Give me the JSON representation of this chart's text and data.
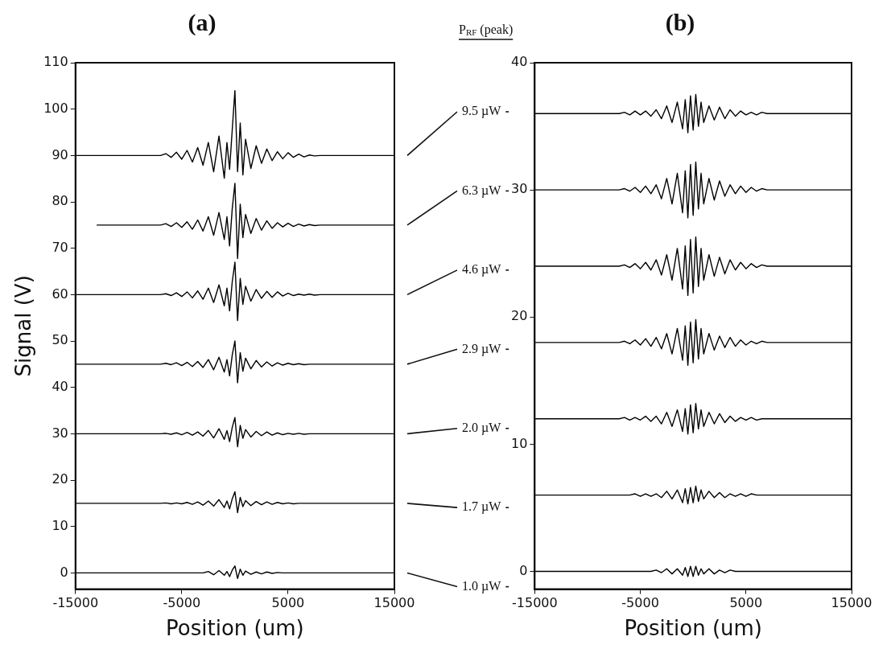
{
  "chart_data": [
    {
      "type": "line",
      "title": "(a)",
      "xlabel": "Position (um)",
      "ylabel": "Signal (V)",
      "annotations": [
        "P$_{RF}$ (peak)"
      ],
      "xlim": [
        -15000,
        15000
      ],
      "xticks": [
        -15000,
        -5000,
        5000,
        15000
      ],
      "ylim": [
        -3.5,
        110
      ],
      "yticks": [
        0,
        10,
        20,
        30,
        40,
        50,
        60,
        70,
        80,
        90,
        100,
        110
      ],
      "x": [
        -15000,
        -13000,
        -7000,
        -6500,
        -6000,
        -5500,
        -5000,
        -4500,
        -4000,
        -3500,
        -3000,
        -2500,
        -2000,
        -1500,
        -1000,
        -750,
        -500,
        -250,
        0,
        250,
        500,
        750,
        1000,
        1500,
        2000,
        2500,
        3000,
        3500,
        4000,
        4500,
        5000,
        5500,
        6000,
        6500,
        7000,
        7500,
        8000,
        15000
      ],
      "series": [
        {
          "name": "9.5 µW",
          "color": "#000000",
          "values": [
            90,
            90,
            90,
            90.4,
            89.6,
            90.7,
            89.2,
            91.1,
            88.6,
            91.7,
            87.9,
            92.8,
            86.5,
            94.2,
            85.1,
            92.8,
            87,
            95.6,
            104,
            86.5,
            97,
            85.8,
            93.5,
            87.2,
            92.1,
            88.3,
            91.4,
            88.9,
            90.8,
            89.3,
            90.6,
            89.6,
            90.3,
            89.7,
            90.1,
            89.9,
            90,
            90
          ]
        },
        {
          "name": "6.3 µW",
          "color": "#000000",
          "values": [
            null,
            75,
            75,
            75.3,
            74.7,
            75.5,
            74.5,
            75.7,
            74.1,
            76.1,
            73.7,
            76.8,
            72.8,
            77.7,
            71.9,
            76.8,
            70.5,
            78.6,
            84,
            67.8,
            79.5,
            72.3,
            77.3,
            73.2,
            76.4,
            73.9,
            75.9,
            74.3,
            75.5,
            74.6,
            75.4,
            74.7,
            75.2,
            74.8,
            75.1,
            74.9,
            75,
            75
          ]
        },
        {
          "name": "4.6 µW",
          "color": "#000000",
          "values": [
            60,
            60,
            60,
            60.2,
            59.8,
            60.4,
            59.6,
            60.6,
            59.3,
            60.8,
            59,
            61.4,
            58.3,
            62.1,
            57.6,
            61.4,
            56.5,
            62.8,
            67,
            54.4,
            63.5,
            57.9,
            61.8,
            58.6,
            61.1,
            59.2,
            60.7,
            59.4,
            60.6,
            59.7,
            60.3,
            59.8,
            60.1,
            59.9,
            60.1,
            59.9,
            60,
            60
          ]
        },
        {
          "name": "2.9 µW",
          "color": "#000000",
          "values": [
            45,
            45,
            45,
            45.2,
            44.9,
            45.3,
            44.7,
            45.4,
            44.5,
            45.6,
            44.3,
            46,
            43.8,
            46.5,
            43.3,
            46,
            42.5,
            47,
            50,
            41,
            47.5,
            43.5,
            46.3,
            44,
            45.8,
            44.4,
            45.5,
            44.6,
            45.3,
            44.8,
            45.2,
            44.9,
            45.1,
            44.9,
            45,
            45,
            45,
            45
          ]
        },
        {
          "name": "2.0 µW",
          "color": "#000000",
          "values": [
            30,
            30,
            30,
            30.1,
            29.9,
            30.2,
            29.8,
            30.3,
            29.7,
            30.4,
            29.5,
            30.7,
            29.1,
            31.1,
            28.8,
            30.7,
            28.3,
            31.4,
            33.5,
            27.2,
            31.8,
            29,
            30.9,
            29.3,
            30.5,
            29.6,
            30.4,
            29.7,
            30.2,
            29.8,
            30.1,
            29.9,
            30.1,
            29.9,
            30,
            30,
            30,
            30
          ]
        },
        {
          "name": "1.7 µW",
          "color": "#000000",
          "values": [
            15,
            15,
            15,
            15.1,
            14.9,
            15.1,
            14.9,
            15.2,
            14.8,
            15.3,
            14.6,
            15.5,
            14.4,
            15.8,
            14.1,
            15.5,
            13.8,
            16,
            17.5,
            13,
            16.3,
            14.3,
            15.6,
            14.5,
            15.4,
            14.7,
            15.3,
            14.8,
            15.2,
            14.9,
            15.1,
            14.9,
            15,
            15,
            15,
            15,
            15,
            15
          ]
        },
        {
          "name": "1.0 µW",
          "color": "#000000",
          "values": [
            0,
            0,
            0,
            0,
            0,
            0,
            0,
            0,
            0,
            0,
            0,
            0.3,
            -0.4,
            0.5,
            -0.5,
            0.3,
            -0.8,
            0.6,
            1.5,
            -1.2,
            0.8,
            -0.5,
            0.4,
            -0.3,
            0.2,
            -0.2,
            0.2,
            -0.1,
            0.1,
            0,
            0,
            0,
            0,
            0,
            0,
            0,
            0,
            0
          ]
        }
      ]
    },
    {
      "type": "line",
      "title": "(b)",
      "xlabel": "Position (um)",
      "xlim": [
        -15000,
        15000
      ],
      "xticks": [
        -15000,
        -5000,
        5000,
        15000
      ],
      "ylim": [
        -1.4,
        40
      ],
      "yticks": [
        0,
        10,
        20,
        30,
        40
      ],
      "x": [
        -15000,
        -13000,
        -7000,
        -6500,
        -6000,
        -5500,
        -5000,
        -4500,
        -4000,
        -3500,
        -3000,
        -2500,
        -2000,
        -1500,
        -1000,
        -750,
        -500,
        -250,
        0,
        250,
        500,
        750,
        1000,
        1500,
        2000,
        2500,
        3000,
        3500,
        4000,
        4500,
        5000,
        5500,
        6000,
        6500,
        7000,
        7500,
        8000,
        15000
      ],
      "series": [
        {
          "color": "#000000",
          "values": [
            36,
            36,
            36,
            36.1,
            35.9,
            36.2,
            35.9,
            36.2,
            35.8,
            36.3,
            35.6,
            36.6,
            35.3,
            36.9,
            34.8,
            37.1,
            34.5,
            37.4,
            34.7,
            37.5,
            35,
            36.9,
            35.3,
            36.6,
            35.5,
            36.5,
            35.6,
            36.3,
            35.8,
            36.2,
            35.9,
            36.1,
            35.9,
            36.1,
            36,
            36,
            36,
            36
          ]
        },
        {
          "color": "#000000",
          "values": [
            30,
            30,
            30,
            30.1,
            29.9,
            30.2,
            29.8,
            30.3,
            29.7,
            30.4,
            29.3,
            30.9,
            28.9,
            31.3,
            28.2,
            31.5,
            27.8,
            32,
            28,
            32.2,
            28.5,
            31.3,
            28.9,
            30.9,
            29.2,
            30.7,
            29.5,
            30.4,
            29.7,
            30.3,
            29.8,
            30.2,
            29.9,
            30.1,
            30,
            30,
            30,
            30
          ]
        },
        {
          "color": "#000000",
          "values": [
            24,
            24,
            24,
            24.1,
            23.9,
            24.2,
            23.8,
            24.3,
            23.7,
            24.5,
            23.3,
            24.9,
            22.9,
            25.4,
            22.2,
            25.6,
            21.7,
            26.1,
            21.9,
            26.3,
            22.4,
            25.4,
            22.9,
            24.9,
            23.2,
            24.7,
            23.4,
            24.5,
            23.7,
            24.3,
            23.8,
            24.2,
            23.9,
            24.1,
            24,
            24,
            24,
            24
          ]
        },
        {
          "color": "#000000",
          "values": [
            18,
            18,
            18,
            18.1,
            17.9,
            18.2,
            17.8,
            18.3,
            17.7,
            18.4,
            17.5,
            18.7,
            17.1,
            19.1,
            16.6,
            19.3,
            16.2,
            19.6,
            16.4,
            19.8,
            16.7,
            19.1,
            17.1,
            18.7,
            17.4,
            18.5,
            17.6,
            18.4,
            17.7,
            18.2,
            17.8,
            18.1,
            17.9,
            18.1,
            18,
            18,
            18,
            18
          ]
        },
        {
          "color": "#000000",
          "values": [
            12,
            12,
            12,
            12.1,
            11.9,
            12.1,
            11.9,
            12.2,
            11.8,
            12.2,
            11.6,
            12.5,
            11.4,
            12.7,
            11,
            12.8,
            10.8,
            13.1,
            10.9,
            13.2,
            11.2,
            12.7,
            11.4,
            12.5,
            11.6,
            12.4,
            11.7,
            12.2,
            11.8,
            12.1,
            11.9,
            12.1,
            11.9,
            12,
            12,
            12,
            12,
            12
          ]
        },
        {
          "color": "#000000",
          "values": [
            6,
            6,
            6,
            6,
            6,
            6.1,
            5.9,
            6.1,
            5.9,
            6.1,
            5.8,
            6.3,
            5.7,
            6.4,
            5.4,
            6.5,
            5.3,
            6.6,
            5.4,
            6.7,
            5.5,
            6.4,
            5.7,
            6.3,
            5.8,
            6.2,
            5.8,
            6.1,
            5.9,
            6.1,
            5.9,
            6.1,
            6,
            6,
            6,
            6,
            6,
            6
          ]
        },
        {
          "color": "#000000",
          "values": [
            0,
            0,
            0,
            0,
            0,
            0,
            0,
            0,
            0,
            0.1,
            -0.1,
            0.2,
            -0.2,
            0.2,
            -0.3,
            0.3,
            -0.4,
            0.4,
            -0.4,
            0.4,
            -0.3,
            0.2,
            -0.2,
            0.2,
            -0.2,
            0.1,
            -0.1,
            0.1,
            0,
            0,
            0,
            0,
            0,
            0,
            0,
            0,
            0,
            0
          ]
        }
      ]
    }
  ]
}
